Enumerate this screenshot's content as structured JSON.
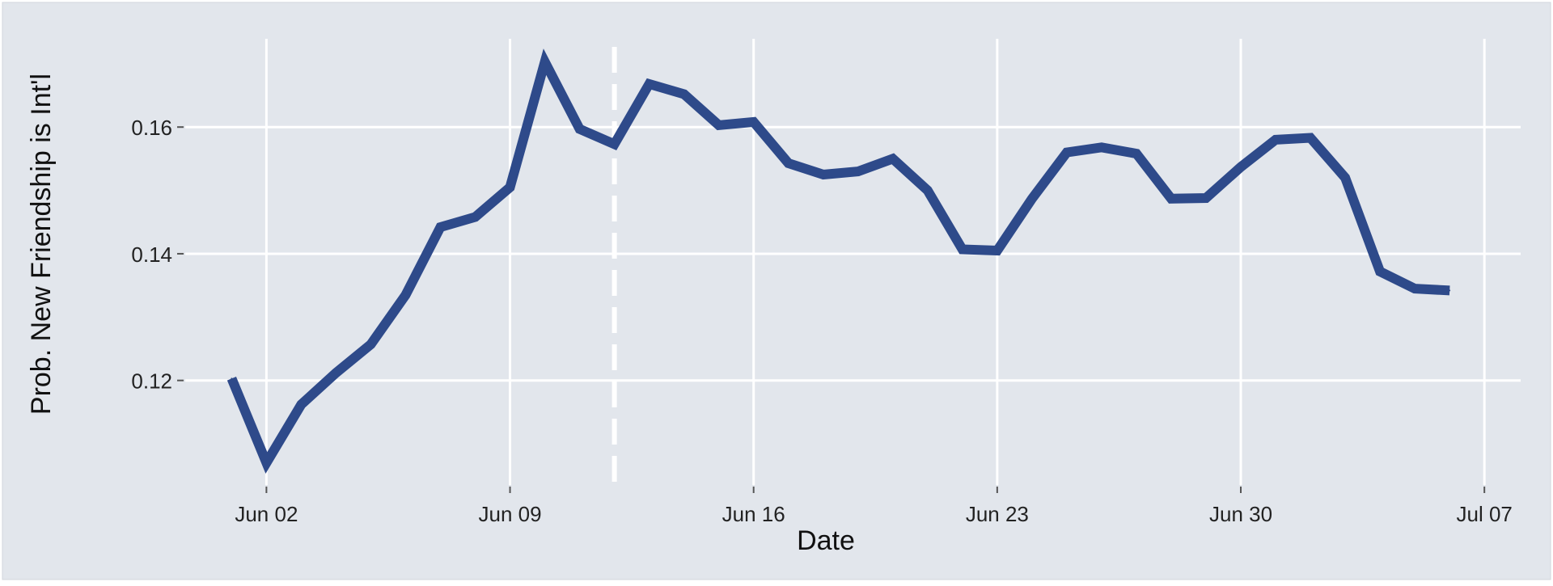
{
  "chart_data": {
    "type": "line",
    "xlabel": "Date",
    "ylabel": "Prob. New Friendship is Int'l",
    "x_ticks": [
      {
        "date": "2019-06-02",
        "label": "Jun 02"
      },
      {
        "date": "2019-06-09",
        "label": "Jun 09"
      },
      {
        "date": "2019-06-16",
        "label": "Jun 16"
      },
      {
        "date": "2019-06-23",
        "label": "Jun 23"
      },
      {
        "date": "2019-06-30",
        "label": "Jun 30"
      },
      {
        "date": "2019-07-07",
        "label": "Jul 07"
      }
    ],
    "xlim": [
      "2019-05-30T16:00",
      "2019-07-08T01:00"
    ],
    "y_ticks": [
      {
        "value": 0.12,
        "label": "0.12"
      },
      {
        "value": 0.14,
        "label": "0.14"
      },
      {
        "value": 0.16,
        "label": "0.16"
      }
    ],
    "ylim": [
      0.1035,
      0.1747
    ],
    "grid": true,
    "vline": {
      "date": "2019-06-12",
      "style": "dashed",
      "color": "#ffffff"
    },
    "series": [
      {
        "color": "#2e4a8a",
        "x": [
          "2019-06-01",
          "2019-06-02",
          "2019-06-03",
          "2019-06-04",
          "2019-06-05",
          "2019-06-06",
          "2019-06-07",
          "2019-06-08",
          "2019-06-09",
          "2019-06-10",
          "2019-06-11",
          "2019-06-12",
          "2019-06-13",
          "2019-06-14",
          "2019-06-15",
          "2019-06-16",
          "2019-06-17",
          "2019-06-18",
          "2019-06-19",
          "2019-06-20",
          "2019-06-21",
          "2019-06-22",
          "2019-06-23",
          "2019-06-24",
          "2019-06-25",
          "2019-06-26",
          "2019-06-27",
          "2019-06-28",
          "2019-06-29",
          "2019-06-30",
          "2019-07-01",
          "2019-07-02",
          "2019-07-03",
          "2019-07-04",
          "2019-07-05",
          "2019-07-06"
        ],
        "y": [
          0.1203,
          0.107,
          0.1162,
          0.1212,
          0.1257,
          0.1335,
          0.1442,
          0.1458,
          0.1505,
          0.1703,
          0.1597,
          0.1573,
          0.1668,
          0.1652,
          0.1603,
          0.1608,
          0.1543,
          0.1525,
          0.153,
          0.155,
          0.15,
          0.1407,
          0.1405,
          0.1487,
          0.156,
          0.1568,
          0.1558,
          0.1487,
          0.1488,
          0.1537,
          0.158,
          0.1583,
          0.152,
          0.1372,
          0.1345,
          0.1342
        ]
      }
    ]
  }
}
